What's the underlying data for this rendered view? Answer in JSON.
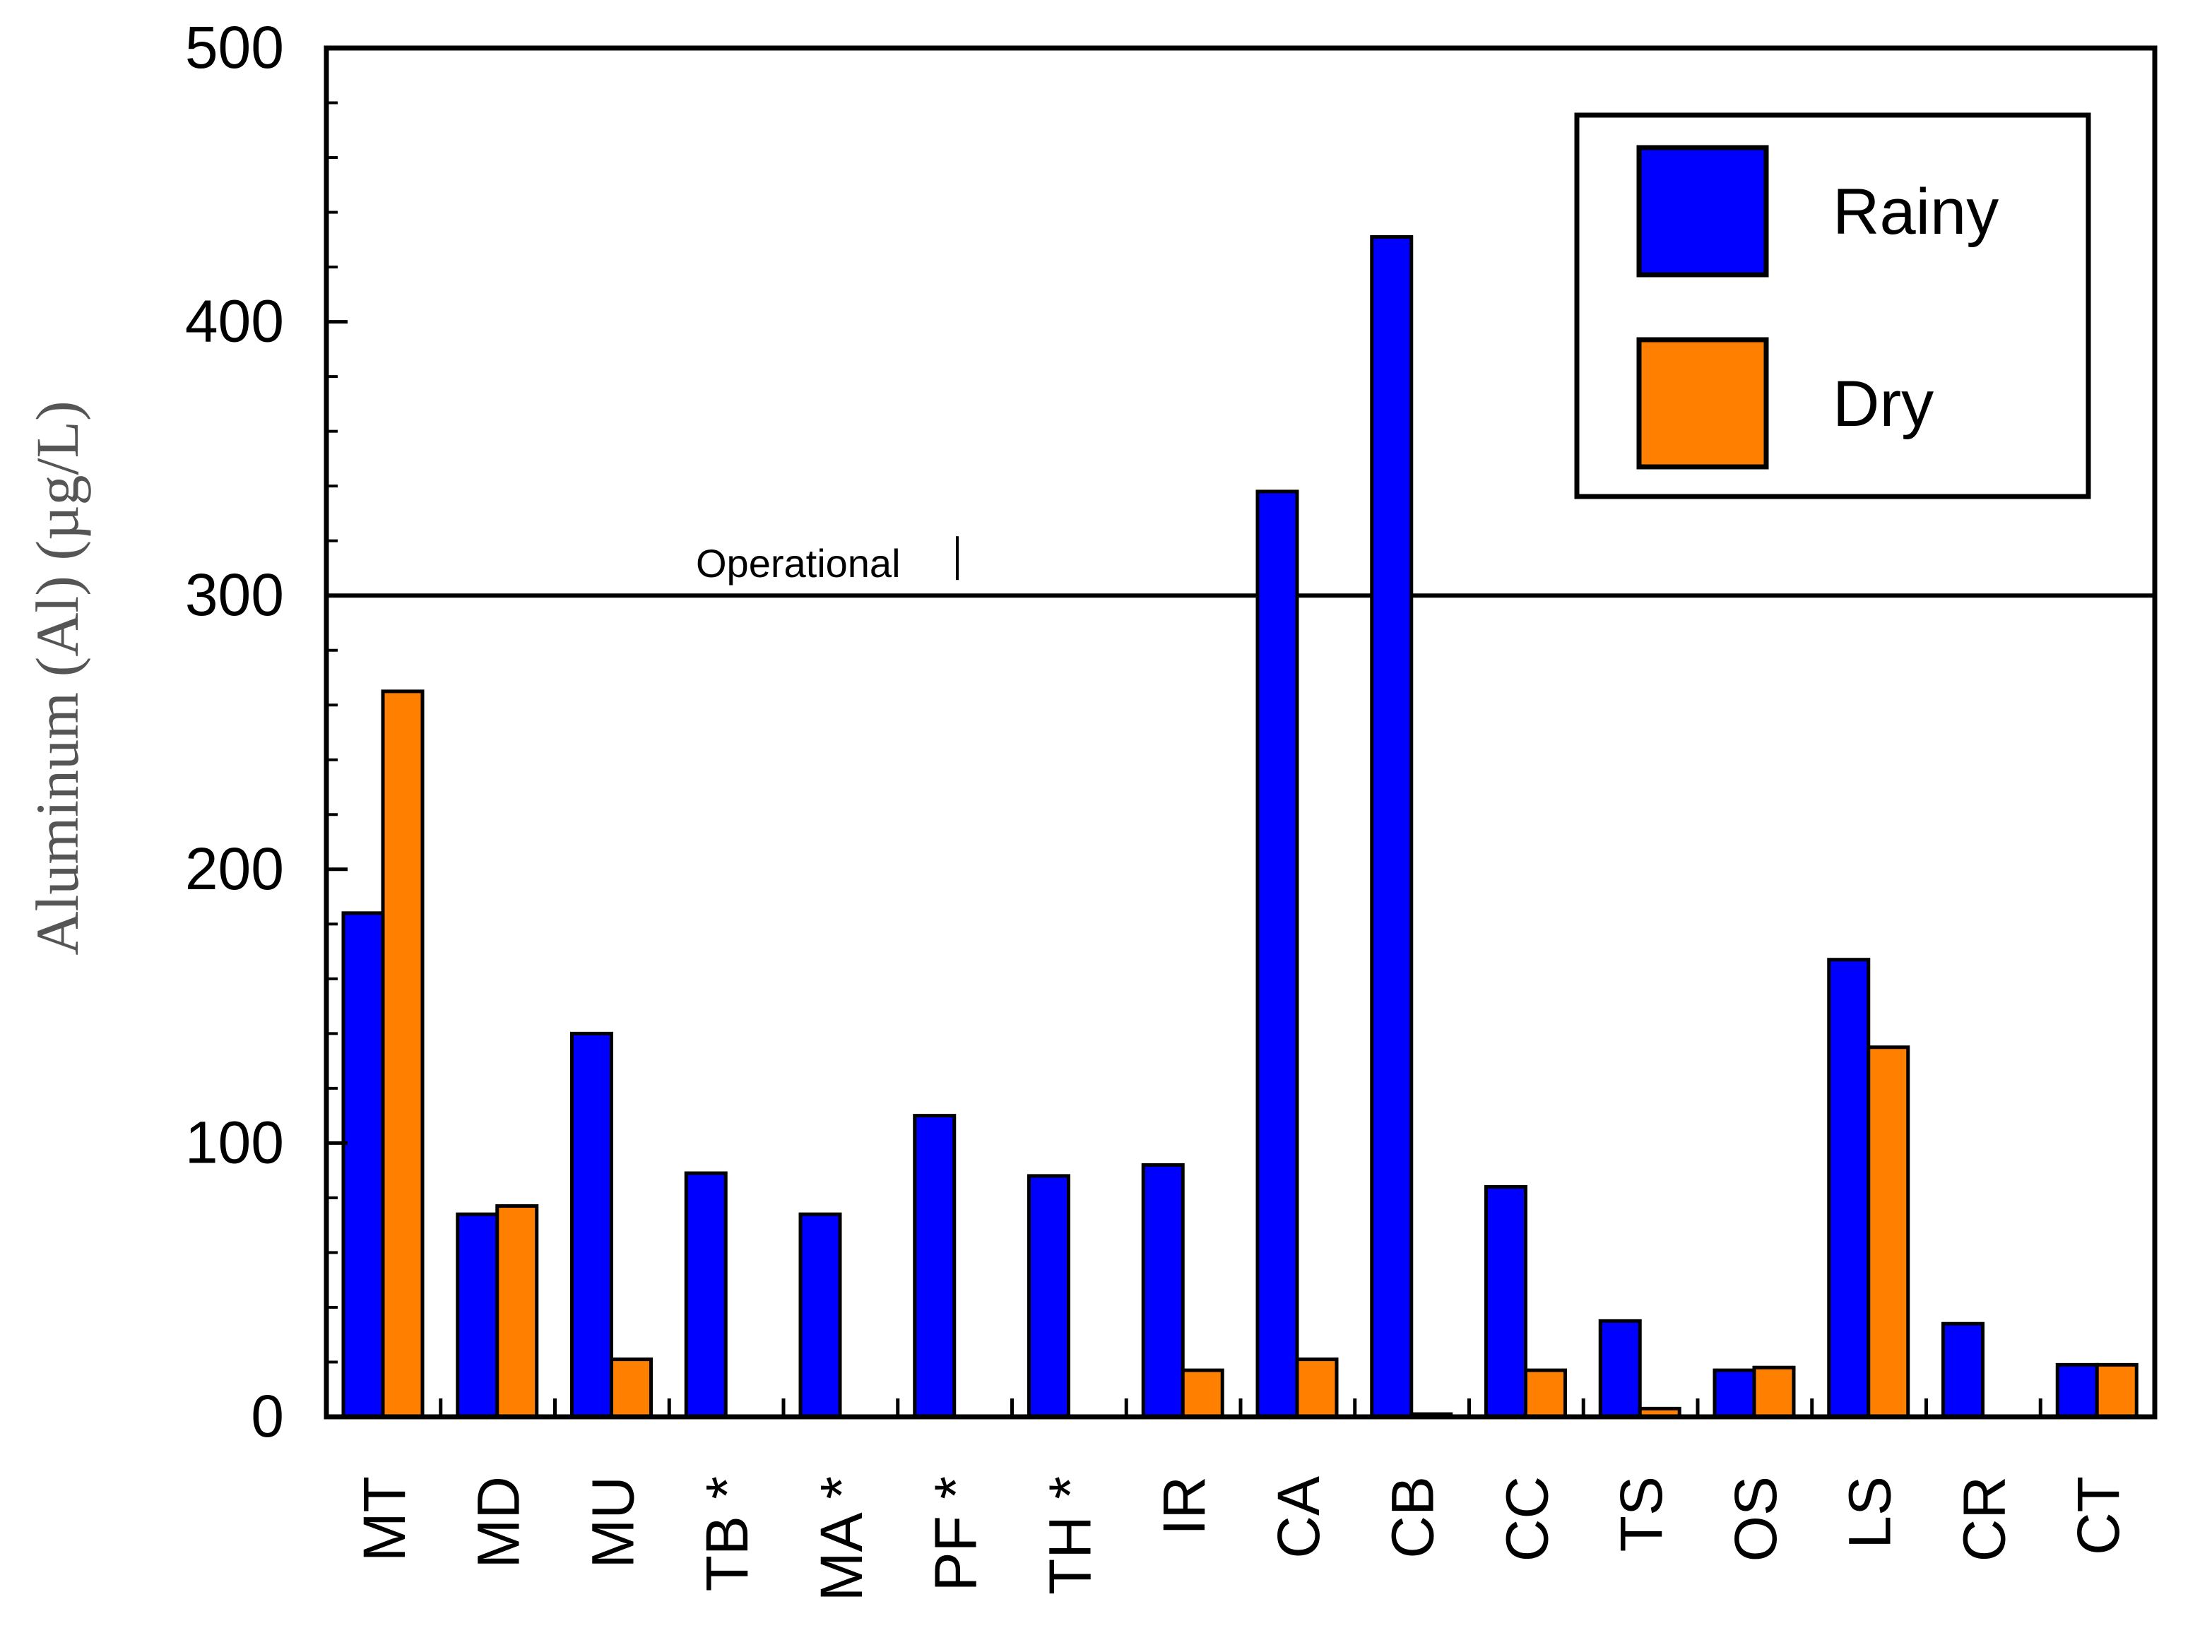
{
  "chart_data": {
    "type": "bar",
    "title": "",
    "xlabel": "",
    "ylabel": "Aluminum (Al) (µg/L)",
    "ylim": [
      0,
      500
    ],
    "yticks": [
      "0",
      "100",
      "200",
      "300",
      "400",
      "500"
    ],
    "categories": [
      "MT",
      "MD",
      "MU",
      "TB *",
      "MA *",
      "PF *",
      "TH *",
      "IR",
      "CA",
      "CB",
      "CC",
      "TS",
      "OS",
      "LS",
      "CR",
      "CT"
    ],
    "series": [
      {
        "name": "Rainy",
        "color": "#0000ff",
        "values": [
          184,
          74,
          140,
          89,
          74,
          110,
          88,
          92,
          338,
          431,
          84,
          35,
          17,
          167,
          34,
          19
        ]
      },
      {
        "name": "Dry",
        "color": "#ff8000",
        "values": [
          265,
          77,
          21,
          null,
          null,
          null,
          null,
          17,
          21,
          1,
          17,
          3,
          18,
          135,
          null,
          19
        ]
      }
    ],
    "reference_line": {
      "value": 300,
      "label": "Operational"
    },
    "legend": {
      "position": "top-right"
    }
  }
}
